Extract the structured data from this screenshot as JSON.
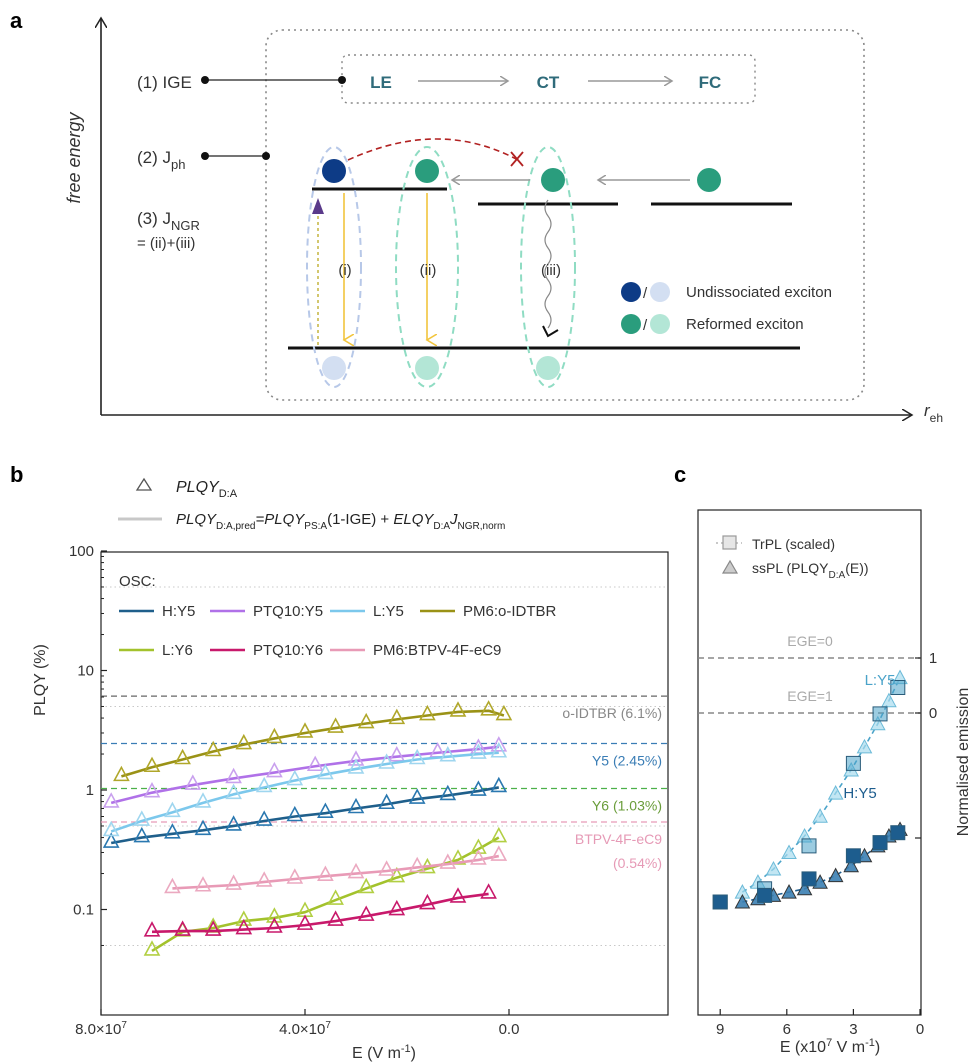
{
  "panel_labels": {
    "a": "a",
    "b": "b",
    "c": "c"
  },
  "panel_a": {
    "y_axis_label": "free energy",
    "x_axis_label_main": "r",
    "x_axis_label_sub": "eh",
    "row1": "(1) IGE",
    "row2_main": "(2) J",
    "row2_sub": "ph",
    "row3_main": "(3) J",
    "row3_sub": "NGR",
    "row3_eq": "= (ii)+(iii)",
    "states": [
      "LE",
      "CT",
      "FC"
    ],
    "process_labels": [
      "(i)",
      "(ii)",
      "(iii)"
    ],
    "legend": [
      "Undissociated exciton",
      "Reformed exciton"
    ],
    "legend_sep": "/",
    "colors": {
      "undissociated_dark": "#0d3b86",
      "undissociated_light": "#d3dff2",
      "reformed_dark": "#2a9d7d",
      "reformed_light": "#b3e6d6",
      "arrow_yellow": "#f2c53d",
      "dashed_red": "#b22222",
      "state_text": "#2f6b7a"
    }
  },
  "chart_data": [
    {
      "type": "line",
      "panel": "b",
      "xlabel": "E (V m",
      "xlabel_sup": "-1",
      "xlabel_end": ")",
      "ylabel": "PLQY (%)",
      "yscale": "log",
      "xlim": [
        80000000,
        0
      ],
      "ylim": [
        0.03,
        100
      ],
      "x_ticks": [
        "8.0×10",
        "4.0×10",
        "0.0"
      ],
      "x_tick_sup": "7",
      "y_ticks": [
        "100",
        "10",
        "1",
        "0.1"
      ],
      "legend_top": {
        "marker_label": "PLQY",
        "marker_sub": "D:A",
        "line_label": "PLQY_{D:A,pred}=PLQY_{PS:A}(1-IGE) + ELQY_{D:A}J_{NGR,norm}"
      },
      "legend_title": "OSC:",
      "series": [
        {
          "name": "H:Y5",
          "color": "#1f5f8b",
          "marker_color": "#2a78b0",
          "x": [
            78,
            72,
            66,
            60,
            54,
            48,
            42,
            36,
            30,
            24,
            18,
            12,
            6,
            2
          ],
          "y": [
            0.36,
            0.4,
            0.43,
            0.46,
            0.5,
            0.55,
            0.6,
            0.64,
            0.7,
            0.76,
            0.84,
            0.9,
            0.98,
            1.05
          ]
        },
        {
          "name": "PTQ10:Y5",
          "color": "#b071e8",
          "marker_color": "#c9a0ee",
          "x": [
            78,
            70,
            62,
            54,
            46,
            38,
            30,
            22,
            14,
            6,
            2
          ],
          "y": [
            0.78,
            0.95,
            1.1,
            1.25,
            1.4,
            1.58,
            1.75,
            1.9,
            2.05,
            2.2,
            2.3
          ]
        },
        {
          "name": "L:Y5",
          "color": "#7cc8ec",
          "marker_color": "#9fd6ef",
          "x": [
            78,
            72,
            66,
            60,
            54,
            48,
            42,
            36,
            30,
            24,
            18,
            12,
            6,
            2
          ],
          "y": [
            0.45,
            0.55,
            0.65,
            0.78,
            0.92,
            1.05,
            1.2,
            1.35,
            1.5,
            1.65,
            1.8,
            1.9,
            2.0,
            2.05
          ]
        },
        {
          "name": "PM6:o-IDTBR",
          "color": "#9a9216",
          "marker_color": "#b0a72a",
          "x": [
            76,
            70,
            64,
            58,
            52,
            46,
            40,
            34,
            28,
            22,
            16,
            10,
            4,
            1
          ],
          "y": [
            1.3,
            1.55,
            1.8,
            2.1,
            2.4,
            2.7,
            3.0,
            3.3,
            3.6,
            3.9,
            4.2,
            4.5,
            4.6,
            4.2
          ]
        },
        {
          "name": "L:Y6",
          "color": "#a3c22c",
          "marker_color": "#b2cf43",
          "x": [
            70,
            64,
            58,
            52,
            46,
            40,
            34,
            28,
            22,
            16,
            10,
            6,
            2
          ],
          "y": [
            0.045,
            0.065,
            0.07,
            0.08,
            0.085,
            0.095,
            0.12,
            0.15,
            0.185,
            0.22,
            0.26,
            0.32,
            0.4
          ]
        },
        {
          "name": "PTQ10:Y6",
          "color": "#c8196b",
          "marker_color": "#c8196b",
          "x": [
            70,
            64,
            58,
            52,
            46,
            40,
            34,
            28,
            22,
            16,
            10,
            4
          ],
          "y": [
            0.065,
            0.066,
            0.066,
            0.068,
            0.07,
            0.074,
            0.08,
            0.088,
            0.098,
            0.11,
            0.125,
            0.135
          ]
        },
        {
          "name": "PM6:BTPV-4F-eC9",
          "color": "#e89ab6",
          "marker_color": "#eba9c0",
          "x": [
            66,
            60,
            54,
            48,
            42,
            36,
            30,
            24,
            18,
            12,
            6,
            2
          ],
          "y": [
            0.15,
            0.155,
            0.16,
            0.17,
            0.18,
            0.19,
            0.2,
            0.21,
            0.225,
            0.24,
            0.26,
            0.28
          ]
        }
      ],
      "reference_lines": [
        {
          "label": "o-IDTBR (6.1%)",
          "value": 6.1,
          "color": "#666666",
          "label_color": "#888888"
        },
        {
          "label": "Y5 (2.45%)",
          "value": 2.45,
          "color": "#3a7db5",
          "label_color": "#3a7db5"
        },
        {
          "label": "Y6 (1.03%)",
          "value": 1.03,
          "color": "#4cb04a",
          "label_color": "#6a9d3a"
        },
        {
          "label": "BTPV-4F-eC9",
          "label2": "(0.54%)",
          "value": 0.54,
          "color": "#e69ab6",
          "label_color": "#e69ab6"
        }
      ],
      "grid": "dotted at 0.05, 0.5, 5, 50"
    },
    {
      "type": "scatter",
      "panel": "c",
      "xlabel": "E (x10",
      "xlabel_sup": "7",
      "xlabel_mid": " V m",
      "xlabel_sup2": "-1",
      "xlabel_end": ")",
      "ylabel": "Normalised emission",
      "xlim": [
        10,
        0
      ],
      "ylim": [
        0,
        1
      ],
      "x_ticks": [
        "9",
        "6",
        "3",
        "0"
      ],
      "y_ticks": [
        "1",
        "0"
      ],
      "legend": [
        {
          "label": "TrPL (scaled)",
          "marker": "square"
        },
        {
          "label": "ssPL (PLQY",
          "sub": "D:A",
          "end": "(E))",
          "marker": "triangle"
        }
      ],
      "reference_lines": [
        {
          "label": "EGE=0",
          "value": 1.0
        },
        {
          "label": "EGE=1",
          "value": 0.0
        }
      ],
      "series": [
        {
          "name": "L:Y5",
          "color": "#4aa3c9",
          "light": "#a8dbee",
          "trpl_x": [
            9.0,
            7.0,
            5.0,
            3.0,
            1.8,
            1.0
          ],
          "trpl_y": [
            0.1,
            0.14,
            0.27,
            0.52,
            0.67,
            0.75
          ],
          "sspl_x": [
            8.0,
            7.3,
            6.6,
            5.9,
            5.2,
            4.5,
            3.8,
            3.1,
            2.5,
            1.9,
            1.4,
            0.9
          ],
          "sspl_y": [
            0.13,
            0.16,
            0.2,
            0.25,
            0.3,
            0.36,
            0.43,
            0.5,
            0.57,
            0.64,
            0.71,
            0.78
          ]
        },
        {
          "name": "H:Y5",
          "color": "#1d5d8e",
          "light": "#3b7fb3",
          "trpl_x": [
            9.0,
            7.0,
            5.0,
            3.0,
            1.8,
            1.0
          ],
          "trpl_y": [
            0.1,
            0.12,
            0.17,
            0.24,
            0.28,
            0.31
          ],
          "sspl_x": [
            8.0,
            7.3,
            6.6,
            5.9,
            5.2,
            4.5,
            3.8,
            3.1,
            2.5,
            1.9,
            1.4,
            0.9
          ],
          "sspl_y": [
            0.1,
            0.11,
            0.12,
            0.13,
            0.14,
            0.16,
            0.18,
            0.21,
            0.24,
            0.27,
            0.3,
            0.32
          ]
        }
      ]
    }
  ]
}
